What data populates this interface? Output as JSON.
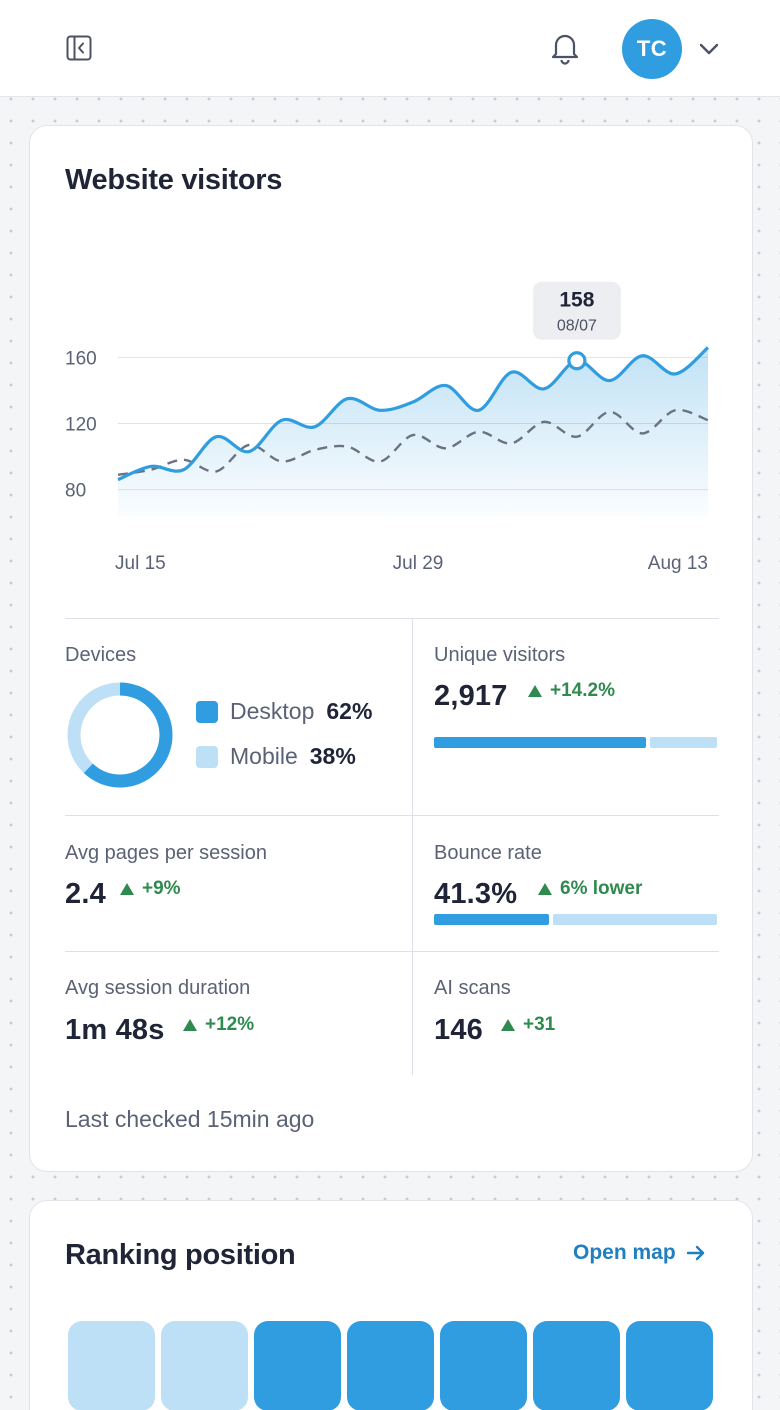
{
  "header": {
    "avatar_initials": "TC"
  },
  "visitors_card": {
    "title": "Website visitors",
    "tooltip": {
      "value": "158",
      "date": "08/07"
    },
    "chart_data": {
      "type": "line",
      "title": "",
      "x_ticks": [
        "Jul 15",
        "Jul 29",
        "Aug 13"
      ],
      "y_ticks": [
        80,
        120,
        160
      ],
      "ylim": [
        64,
        176
      ],
      "grid": true,
      "series": [
        {
          "style": "solid-area",
          "color": "#2f9de0",
          "values": [
            86,
            94,
            92,
            112,
            103,
            122,
            118,
            135,
            128,
            133,
            143,
            128,
            151,
            141,
            158,
            146,
            161,
            150,
            166
          ]
        },
        {
          "style": "dashed",
          "color": "#6b7280",
          "values": [
            89,
            92,
            98,
            91,
            107,
            97,
            104,
            106,
            97,
            113,
            105,
            115,
            108,
            121,
            112,
            127,
            114,
            128,
            122
          ]
        }
      ],
      "highlight_index": 14
    }
  },
  "devices": {
    "label": "Devices",
    "items": [
      {
        "name": "Desktop",
        "pct_label": "62%",
        "share": 0.62,
        "color": "#2f9de0"
      },
      {
        "name": "Mobile",
        "pct_label": "38%",
        "share": 0.38,
        "color": "#bde0f6"
      }
    ]
  },
  "unique_visitors": {
    "label": "Unique visitors",
    "value": "2,917",
    "delta": "+14.2%",
    "fill": 0.76
  },
  "avg_pages": {
    "label": "Avg pages per session",
    "value": "2.4",
    "delta": "+9%"
  },
  "bounce_rate": {
    "label": "Bounce rate",
    "value": "41.3%",
    "delta": "6% lower",
    "fill": 0.413
  },
  "avg_duration": {
    "label": "Avg session duration",
    "value": "1m 48s",
    "delta": "+12%"
  },
  "ai_scans": {
    "label": "AI scans",
    "value": "146",
    "delta": "+31"
  },
  "last_checked": "Last checked 15min ago",
  "ranking_card": {
    "title": "Ranking position",
    "open_map": "Open map",
    "tiles": [
      "light",
      "light",
      "dark",
      "dark",
      "dark",
      "dark",
      "dark"
    ],
    "colors": {
      "light": "#bde0f6",
      "dark": "#2f9de0"
    }
  }
}
